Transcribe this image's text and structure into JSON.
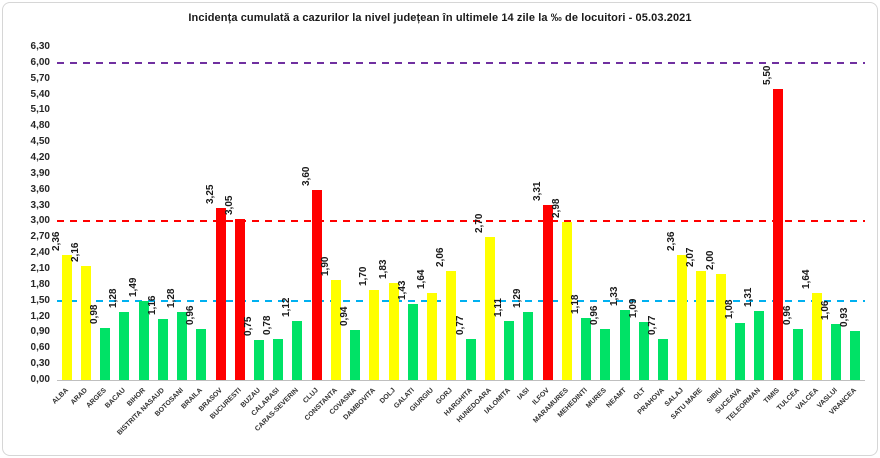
{
  "chart_data": {
    "type": "bar",
    "title": "Incidența cumulată a cazurilor la nivel județean în ultimele 14 zile la ‰ de locuitori - 05.03.2021",
    "categories": [
      "ALBA",
      "ARAD",
      "ARGES",
      "BACAU",
      "BIHOR",
      "BISTRITA NASAUD",
      "BOTOSANI",
      "BRAILA",
      "BRASOV",
      "BUCURESTI",
      "BUZAU",
      "CALARASI",
      "CARAS-SEVERIN",
      "CLUJ",
      "CONSTANTA",
      "COVASNA",
      "DAMBOVITA",
      "DOLJ",
      "GALATI",
      "GIURGIU",
      "GORJ",
      "HARGHITA",
      "HUNEDOARA",
      "IALOMITA",
      "IASI",
      "ILFOV",
      "MARAMURES",
      "MEHEDINTI",
      "MURES",
      "NEAMT",
      "OLT",
      "PRAHOVA",
      "SALAJ",
      "SATU MARE",
      "SIBIU",
      "SUCEAVA",
      "TELEORMAN",
      "TIMIS",
      "TULCEA",
      "VALCEA",
      "VASLUI",
      "VRANCEA"
    ],
    "values": [
      2.36,
      2.16,
      0.98,
      1.28,
      1.49,
      1.16,
      1.28,
      0.96,
      3.25,
      3.05,
      0.75,
      0.78,
      1.12,
      3.6,
      1.9,
      0.94,
      1.7,
      1.83,
      1.43,
      1.64,
      2.06,
      0.77,
      2.7,
      1.11,
      1.29,
      3.31,
      2.98,
      1.18,
      0.96,
      1.33,
      1.09,
      0.77,
      2.36,
      2.07,
      2.0,
      1.08,
      1.31,
      5.5,
      0.96,
      1.64,
      1.06,
      0.93
    ],
    "value_labels": [
      "2,36",
      "2,16",
      "0,98",
      "1,28",
      "1,49",
      "1,16",
      "1,28",
      "0,96",
      "3,25",
      "3,05",
      "0,75",
      "0,78",
      "1,12",
      "3,60",
      "1,90",
      "0,94",
      "1,70",
      "1,83",
      "1,43",
      "1,64",
      "2,06",
      "0,77",
      "2,70",
      "1,11",
      "1,29",
      "3,31",
      "2,98",
      "1,18",
      "0,96",
      "1,33",
      "1,09",
      "0,77",
      "2,36",
      "2,07",
      "2,00",
      "1,08",
      "1,31",
      "5,50",
      "0,96",
      "1,64",
      "1,06",
      "0,93"
    ],
    "bar_color_names": [
      "yellow",
      "yellow",
      "green",
      "green",
      "green",
      "green",
      "green",
      "green",
      "red",
      "red",
      "green",
      "green",
      "green",
      "red",
      "yellow",
      "green",
      "yellow",
      "yellow",
      "green",
      "yellow",
      "yellow",
      "green",
      "yellow",
      "green",
      "green",
      "red",
      "yellow",
      "green",
      "green",
      "green",
      "green",
      "green",
      "yellow",
      "yellow",
      "yellow",
      "green",
      "green",
      "red",
      "green",
      "yellow",
      "green",
      "green"
    ],
    "color_map": {
      "green": "#00E266",
      "yellow": "#FFFF00",
      "red": "#FF0000"
    },
    "xlabel": "",
    "ylabel": "",
    "ylim": [
      0,
      6.3
    ],
    "ytick_step": 0.3,
    "ytick_labels": [
      "0,00",
      "0,30",
      "0,60",
      "0,90",
      "1,20",
      "1,50",
      "1,80",
      "2,10",
      "2,40",
      "2,70",
      "3,00",
      "3,30",
      "3,60",
      "3,90",
      "4,20",
      "4,50",
      "4,80",
      "5,10",
      "5,40",
      "5,70",
      "6,00",
      "6,30"
    ],
    "thresholds": [
      {
        "name": "alert-limit-1-50",
        "value": 1.5,
        "color": "#00B0F0"
      },
      {
        "name": "alert-limit-3-00",
        "value": 3.0,
        "color": "#FF0000"
      },
      {
        "name": "alert-limit-6-00",
        "value": 6.0,
        "color": "#7030A0"
      }
    ],
    "grid": false,
    "legend_position": "none"
  }
}
